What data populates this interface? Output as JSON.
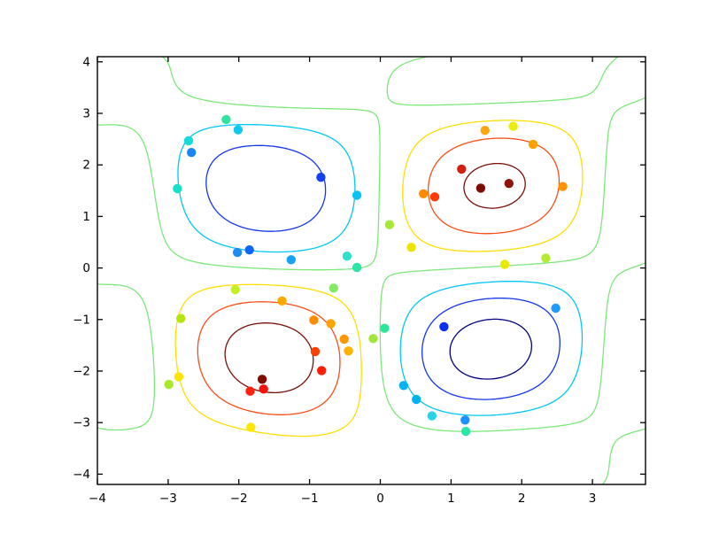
{
  "figure": {
    "background": "#ffffff",
    "plot_background": "#ffffff",
    "spine_color": "#000000",
    "tick_color": "#000000",
    "tick_label_color": "#000000"
  },
  "chart_data": {
    "type": "contour_scatter",
    "title": "",
    "xlabel": "",
    "ylabel": "",
    "xlim": [
      -4.0,
      3.75
    ],
    "ylim": [
      -4.2,
      4.1
    ],
    "grid": false,
    "legend": "none",
    "colormap": "jet",
    "surface": "smooth interpolated surface of z = sin(x)*sin(y) sampled at the scatter points (4 lobes: +max near (1.5,1.5) and (-1.6,-1.8), -min near (-1.5,1.5) and (1.5,-1.7))",
    "x_ticks": {
      "values": [
        -4,
        -3,
        -2,
        -1,
        0,
        1,
        2,
        3
      ],
      "labels": [
        "−4",
        "−3",
        "−2",
        "−1",
        "0",
        "1",
        "2",
        "3"
      ]
    },
    "y_ticks": {
      "values": [
        -4,
        -3,
        -2,
        -1,
        0,
        1,
        2,
        3,
        4
      ],
      "labels": [
        "−4",
        "−3",
        "−2",
        "−1",
        "0",
        "1",
        "2",
        "3",
        "4"
      ]
    },
    "contour_levels": [
      {
        "level": -0.93,
        "color": "#000080"
      },
      {
        "level": -0.62,
        "color": "#1436f0"
      },
      {
        "level": -0.31,
        "color": "#00c8f5"
      },
      {
        "level": 0.0,
        "color": "#7ce87a"
      },
      {
        "level": 0.31,
        "color": "#ffdf00"
      },
      {
        "level": 0.62,
        "color": "#fb4e18"
      },
      {
        "level": 0.93,
        "color": "#7c0f08"
      }
    ],
    "scatter_points": [
      {
        "x": -2.18,
        "y": 2.88,
        "color": "#2fe3a0"
      },
      {
        "x": -2.01,
        "y": 2.68,
        "color": "#12c8f0"
      },
      {
        "x": -2.71,
        "y": 2.47,
        "color": "#14dcd8"
      },
      {
        "x": -2.67,
        "y": 2.24,
        "color": "#1a86f2"
      },
      {
        "x": -2.87,
        "y": 1.54,
        "color": "#17dfc9"
      },
      {
        "x": -0.84,
        "y": 1.76,
        "color": "#1641ee"
      },
      {
        "x": -0.33,
        "y": 1.41,
        "color": "#0cc2f5"
      },
      {
        "x": 0.13,
        "y": 0.84,
        "color": "#a5e836"
      },
      {
        "x": 1.48,
        "y": 2.67,
        "color": "#ffa510"
      },
      {
        "x": 1.88,
        "y": 2.75,
        "color": "#e9ef00"
      },
      {
        "x": 2.16,
        "y": 2.4,
        "color": "#ffa200"
      },
      {
        "x": 2.58,
        "y": 1.58,
        "color": "#ff9400"
      },
      {
        "x": 1.15,
        "y": 1.92,
        "color": "#d32011"
      },
      {
        "x": 1.82,
        "y": 1.64,
        "color": "#8e1309"
      },
      {
        "x": 1.42,
        "y": 1.55,
        "color": "#7d0b04"
      },
      {
        "x": 0.61,
        "y": 1.44,
        "color": "#ff8c00"
      },
      {
        "x": 0.77,
        "y": 1.38,
        "color": "#ff3a00"
      },
      {
        "x": 0.44,
        "y": 0.4,
        "color": "#ebe400"
      },
      {
        "x": 1.76,
        "y": 0.07,
        "color": "#e9e800"
      },
      {
        "x": 2.34,
        "y": 0.19,
        "color": "#b4e934"
      },
      {
        "x": -2.02,
        "y": 0.3,
        "color": "#1e8df2"
      },
      {
        "x": -1.85,
        "y": 0.35,
        "color": "#0b66f7"
      },
      {
        "x": -1.26,
        "y": 0.16,
        "color": "#17a2f5"
      },
      {
        "x": -0.47,
        "y": 0.23,
        "color": "#2fe0cd"
      },
      {
        "x": -0.33,
        "y": 0.01,
        "color": "#2ae4a8"
      },
      {
        "x": -2.05,
        "y": -0.42,
        "color": "#c3ef1c"
      },
      {
        "x": -0.66,
        "y": -0.39,
        "color": "#85e968"
      },
      {
        "x": -1.39,
        "y": -0.64,
        "color": "#ffa800"
      },
      {
        "x": -2.82,
        "y": -0.98,
        "color": "#b5e512"
      },
      {
        "x": -0.94,
        "y": -1.01,
        "color": "#ff8c00"
      },
      {
        "x": -0.7,
        "y": -1.08,
        "color": "#ffa300"
      },
      {
        "x": -0.51,
        "y": -1.38,
        "color": "#ff9800"
      },
      {
        "x": -0.45,
        "y": -1.61,
        "color": "#ffb300"
      },
      {
        "x": -0.92,
        "y": -1.62,
        "color": "#ff4000"
      },
      {
        "x": -0.83,
        "y": -1.99,
        "color": "#ff1e00"
      },
      {
        "x": -2.85,
        "y": -2.11,
        "color": "#ffe400"
      },
      {
        "x": -2.99,
        "y": -2.26,
        "color": "#abe82a"
      },
      {
        "x": -1.67,
        "y": -2.16,
        "color": "#7e0d04"
      },
      {
        "x": -1.65,
        "y": -2.35,
        "color": "#f51105"
      },
      {
        "x": -1.84,
        "y": -2.39,
        "color": "#ff2010"
      },
      {
        "x": -1.83,
        "y": -3.09,
        "color": "#ffe700"
      },
      {
        "x": 0.06,
        "y": -1.17,
        "color": "#2de69a"
      },
      {
        "x": -0.1,
        "y": -1.37,
        "color": "#9fe83a"
      },
      {
        "x": 2.48,
        "y": -0.78,
        "color": "#1e9bff"
      },
      {
        "x": 0.9,
        "y": -1.14,
        "color": "#0c30f0"
      },
      {
        "x": 0.33,
        "y": -2.28,
        "color": "#00b4f0"
      },
      {
        "x": 0.51,
        "y": -2.55,
        "color": "#00b2f2"
      },
      {
        "x": 0.73,
        "y": -2.87,
        "color": "#25d5e5"
      },
      {
        "x": 1.2,
        "y": -2.95,
        "color": "#1e90ff"
      },
      {
        "x": 1.21,
        "y": -3.17,
        "color": "#2be6a8"
      }
    ]
  }
}
